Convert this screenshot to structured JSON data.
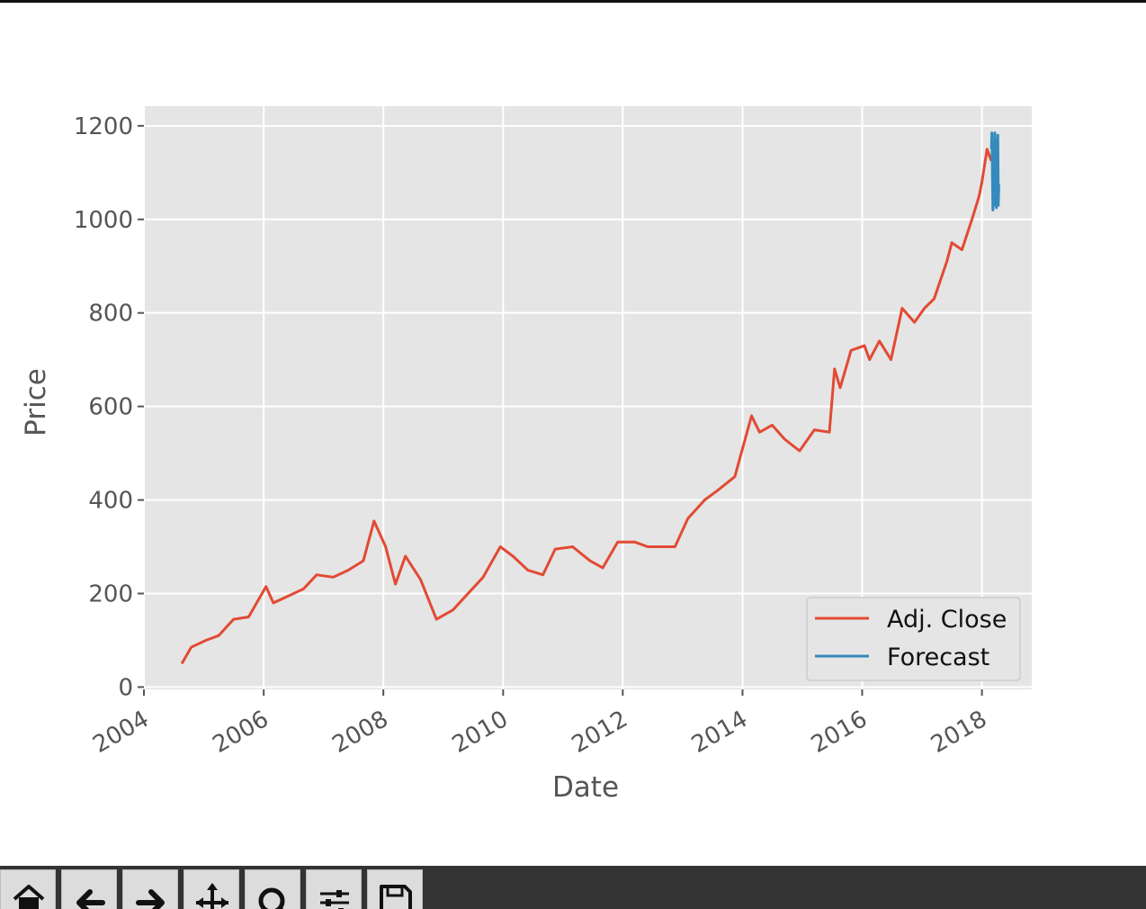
{
  "chart_data": {
    "type": "line",
    "title": "",
    "xlabel": "Date",
    "ylabel": "Price",
    "x_ticks": [
      "2004",
      "2006",
      "2008",
      "2010",
      "2012",
      "2014",
      "2016",
      "2018"
    ],
    "y_ticks": [
      "0",
      "200",
      "400",
      "600",
      "800",
      "1000",
      "1200"
    ],
    "xlim": [
      "2004-01-01",
      "2018-11-01"
    ],
    "ylim": [
      -5,
      1242
    ],
    "grid": true,
    "legend": "lower-right",
    "series": [
      {
        "name": "Adj. Close",
        "color": "#E24A33",
        "x": [
          "2004-08-19",
          "2004-10-15",
          "2005-01-15",
          "2005-04-01",
          "2005-07-01",
          "2005-10-01",
          "2006-01-15",
          "2006-03-01",
          "2006-06-01",
          "2006-09-01",
          "2006-11-20",
          "2007-03-01",
          "2007-06-01",
          "2007-09-01",
          "2007-11-05",
          "2008-01-15",
          "2008-03-15",
          "2008-05-15",
          "2008-08-15",
          "2008-11-20",
          "2009-03-01",
          "2009-06-01",
          "2009-09-01",
          "2009-12-15",
          "2010-03-01",
          "2010-06-01",
          "2010-09-01",
          "2010-11-15",
          "2011-03-01",
          "2011-06-15",
          "2011-09-01",
          "2011-12-01",
          "2012-03-15",
          "2012-06-01",
          "2012-09-15",
          "2012-11-15",
          "2013-02-01",
          "2013-05-15",
          "2013-08-01",
          "2013-11-15",
          "2014-02-25",
          "2014-04-15",
          "2014-07-01",
          "2014-09-15",
          "2014-12-15",
          "2015-03-15",
          "2015-06-15",
          "2015-07-17",
          "2015-08-20",
          "2015-10-25",
          "2016-01-15",
          "2016-02-15",
          "2016-04-15",
          "2016-06-25",
          "2016-09-01",
          "2016-11-15",
          "2017-01-15",
          "2017-03-15",
          "2017-06-01",
          "2017-07-01",
          "2017-09-01",
          "2017-11-01",
          "2017-12-15",
          "2018-01-01",
          "2018-02-01",
          "2018-02-27"
        ],
        "values": [
          50,
          85,
          100,
          110,
          145,
          150,
          215,
          180,
          195,
          210,
          240,
          235,
          250,
          270,
          355,
          300,
          220,
          280,
          230,
          145,
          165,
          200,
          235,
          300,
          280,
          250,
          240,
          295,
          300,
          270,
          255,
          310,
          310,
          300,
          300,
          300,
          360,
          400,
          420,
          450,
          580,
          545,
          560,
          530,
          505,
          550,
          545,
          680,
          640,
          720,
          730,
          700,
          740,
          700,
          810,
          780,
          810,
          830,
          910,
          950,
          935,
          1000,
          1050,
          1080,
          1150,
          1125
        ]
      },
      {
        "name": "Forecast",
        "color": "#348ABD",
        "x": [
          "2018-02-28",
          "2018-03-03",
          "2018-03-06",
          "2018-03-09",
          "2018-03-12",
          "2018-03-15",
          "2018-03-18",
          "2018-03-21",
          "2018-03-24",
          "2018-03-27",
          "2018-03-30",
          "2018-04-02",
          "2018-04-05",
          "2018-04-08",
          "2018-04-11",
          "2018-04-14"
        ],
        "values": [
          1150,
          1185,
          1090,
          1020,
          1160,
          1030,
          1120,
          1185,
          1040,
          1170,
          1025,
          1100,
          1060,
          1180,
          1030,
          1075
        ]
      }
    ]
  },
  "toolbar": {
    "buttons": [
      {
        "icon": "home-icon"
      },
      {
        "icon": "back-arrow-icon"
      },
      {
        "icon": "forward-arrow-icon"
      },
      {
        "icon": "pan-icon"
      },
      {
        "icon": "zoom-icon"
      },
      {
        "icon": "configure-subplots-icon"
      },
      {
        "icon": "save-icon"
      }
    ]
  }
}
